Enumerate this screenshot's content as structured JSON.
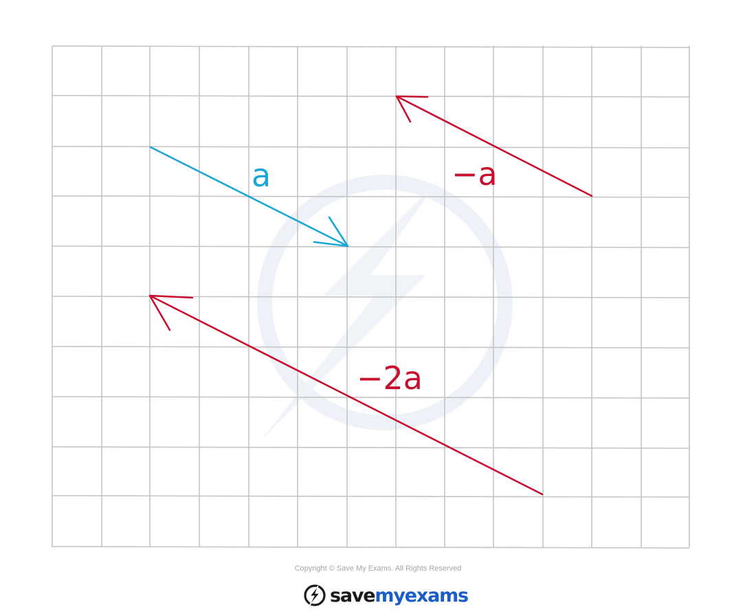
{
  "vectors": [
    {
      "id": "a",
      "label": "a",
      "color": "#1aa6d9"
    },
    {
      "id": "minus-a",
      "label": "−a",
      "color": "#c8102e"
    },
    {
      "id": "minus-2a",
      "label": "−2a",
      "color": "#c8102e"
    }
  ],
  "footer": {
    "copyright": "Copyright © Save My Exams. All Rights Reserved",
    "brand_save": "save",
    "brand_my": "my",
    "brand_exams": "exams"
  },
  "colors": {
    "grid": "#c4c4c4",
    "brand_dark": "#1a1a1a",
    "brand_blue": "#1a5dc8",
    "watermark": "#eef2f8"
  },
  "icons": [
    "lightning-bolt-logo-icon"
  ]
}
